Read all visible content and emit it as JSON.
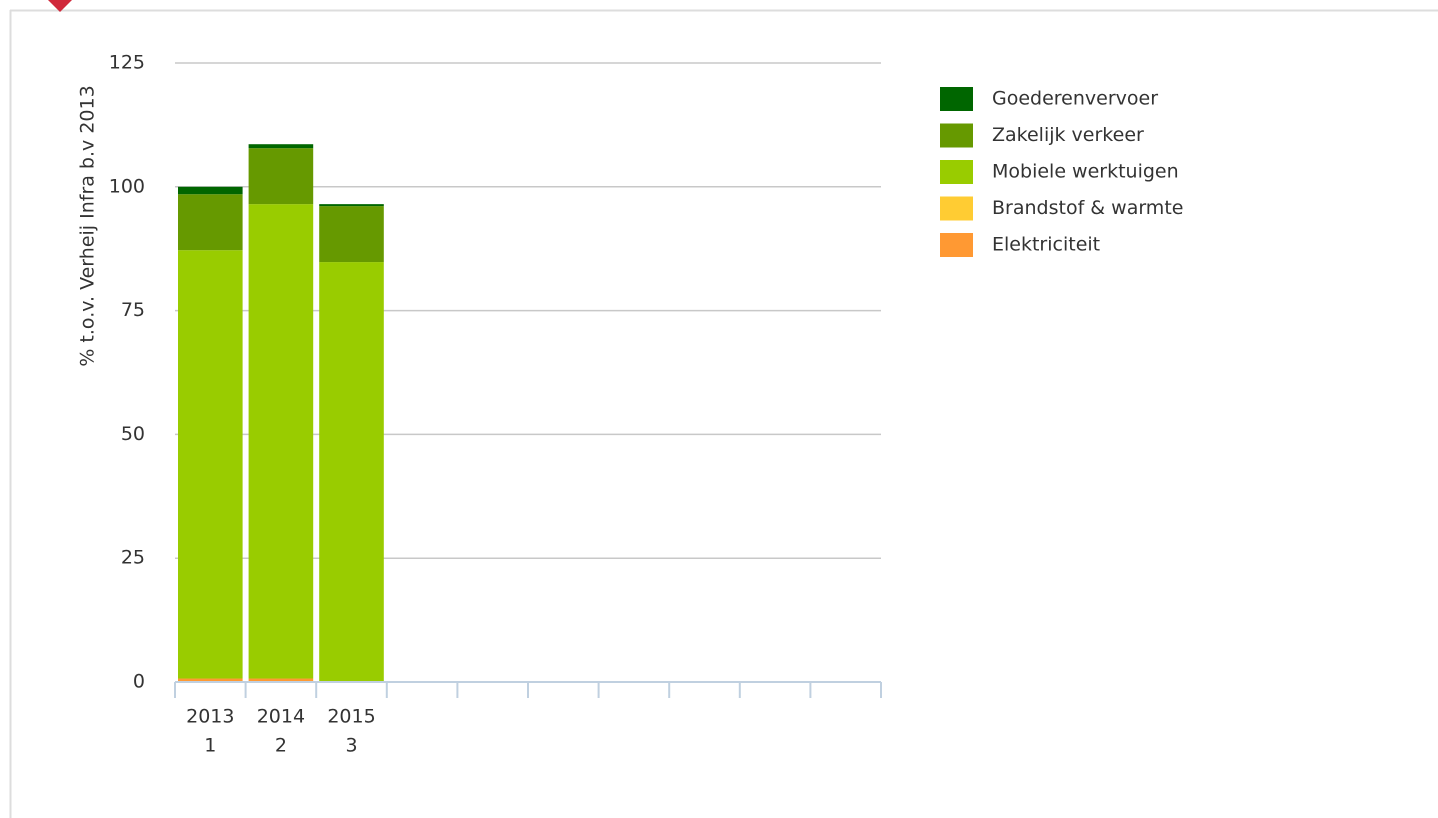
{
  "chart_data": {
    "type": "stacked_bar",
    "y_label": "% t.o.v. Verheij Infra b.v 2013",
    "categories": [
      [
        "2013",
        "1"
      ],
      [
        "2014",
        "2"
      ],
      [
        "2015",
        "3"
      ],
      null,
      null,
      null,
      null,
      null,
      null,
      null
    ],
    "series": [
      {
        "name": "Elektriciteit",
        "color": "#ff9933",
        "values": [
          0.7,
          0.7,
          0.2,
          null,
          null,
          null,
          null,
          null,
          null,
          null
        ]
      },
      {
        "name": "Brandstof & warmte",
        "color": "#ffcc33",
        "values": [
          0,
          0,
          0,
          null,
          null,
          null,
          null,
          null,
          null,
          null
        ]
      },
      {
        "name": "Mobiele werktuigen",
        "color": "#99cc00",
        "values": [
          86.5,
          95.8,
          84.6,
          null,
          null,
          null,
          null,
          null,
          null,
          null
        ]
      },
      {
        "name": "Zakelijk verkeer",
        "color": "#669900",
        "values": [
          11.3,
          11.3,
          11.3,
          null,
          null,
          null,
          null,
          null,
          null,
          null
        ]
      },
      {
        "name": "Goederenvervoer",
        "color": "#006600",
        "values": [
          1.5,
          0.8,
          0.4,
          null,
          null,
          null,
          null,
          null,
          null,
          null
        ]
      }
    ],
    "ylim": [
      0,
      125
    ],
    "yticks": [
      0,
      25,
      50,
      75,
      100,
      125
    ],
    "grid": true,
    "legend": "right"
  }
}
